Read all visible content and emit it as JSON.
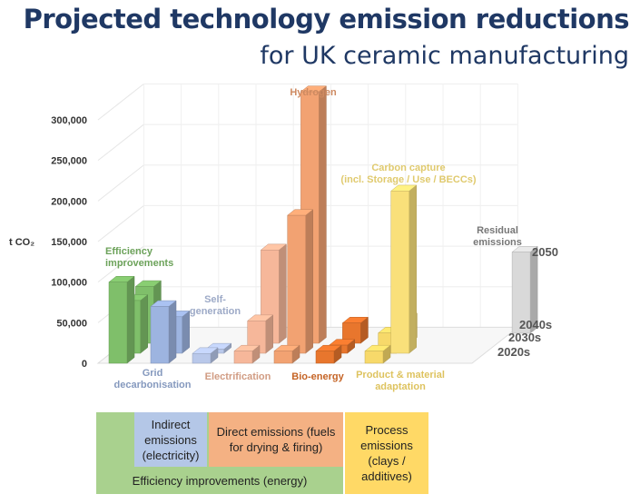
{
  "header": {
    "title": "Projected technology emission reductions",
    "subtitle": "for UK ceramic manufacturing"
  },
  "chart_data": {
    "type": "bar",
    "ylabel": "t CO₂",
    "ylim": [
      0,
      300000
    ],
    "y_ticks": [
      "0",
      "50,000",
      "100,000",
      "150,000",
      "200,000",
      "250,000",
      "300,000"
    ],
    "depth_labels": [
      "2020s",
      "2030s",
      "2040s",
      "2050"
    ],
    "categories": [
      {
        "name": "Efficiency improvements",
        "label_top": "Efficiency\nimprovements",
        "color": "#7fbf6a",
        "values": [
          100000,
          65000,
          70000
        ]
      },
      {
        "name": "Grid decarbonisation",
        "label_bottom": "Grid\ndecarbonisation",
        "color": "#9db4e0",
        "values": [
          70000,
          45000
        ]
      },
      {
        "name": "Self-generation",
        "label_top": "Self-\ngeneration",
        "color": "#b9c8ea",
        "values": [
          12000,
          5000
        ]
      },
      {
        "name": "Electrification",
        "label_bottom": "Electrification",
        "color": "#f6b79a",
        "values": [
          15000,
          40000,
          115000
        ]
      },
      {
        "name": "Hydrogen",
        "label_top": "Hydrogen",
        "color": "#f2a272",
        "values": [
          15000,
          170000,
          310000
        ]
      },
      {
        "name": "Bio-energy",
        "label_bottom": "Bio-energy",
        "color": "#e8762d",
        "values": [
          15000,
          10000,
          25000
        ]
      },
      {
        "name": "Product & material adaptation",
        "label_bottom": "Product & material\nadaptation",
        "color": "#f7d96a",
        "values": [
          15000,
          25000,
          30000
        ]
      },
      {
        "name": "Carbon capture (incl. Storage / Use / BECCs)",
        "label_top": "Carbon capture\n(incl. Storage / Use / BECCs)",
        "color": "#f9e07a",
        "values": [
          200000
        ]
      },
      {
        "name": "Residual emissions",
        "label_top": "Residual\nemissions",
        "color": "#d9d9d9",
        "values": [
          100000
        ]
      }
    ]
  },
  "boxes": {
    "indirect": "Indirect emissions (electricity)",
    "direct": "Direct emissions (fuels for drying & firing)",
    "process": "Process emissions (clays / additives)",
    "efficiency": "Efficiency improvements (energy)"
  },
  "colors": {
    "title": "#1f3864",
    "box_green": "#a9d18e",
    "box_blue": "#b4c7e7",
    "box_orange": "#f4b183",
    "box_yellow": "#ffd966"
  }
}
